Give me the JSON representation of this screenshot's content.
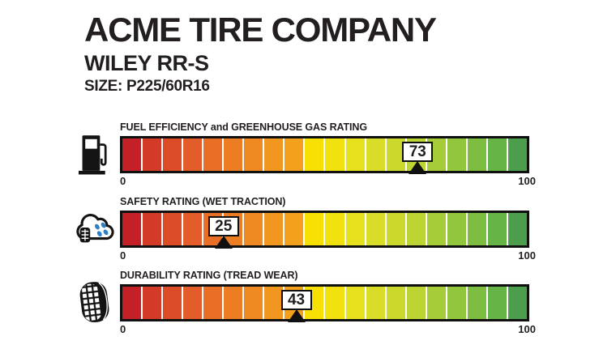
{
  "page": {
    "background": "#ffffff",
    "text_color": "#231f20",
    "bar_border_color": "#101010"
  },
  "header": {
    "company": "ACME TIRE COMPANY",
    "model": "WILEY RR-S",
    "size": "SIZE: P225/60R16"
  },
  "scale": {
    "min": 0,
    "max": 100,
    "min_label": "0",
    "max_label": "100",
    "segments": 20
  },
  "palette": [
    "#c32127",
    "#d43a28",
    "#dc4c27",
    "#e25d2a",
    "#e96f26",
    "#ec7d23",
    "#ee8a21",
    "#f1961f",
    "#f3a11c",
    "#f8e004",
    "#f1e20f",
    "#e6e01d",
    "#d9dd27",
    "#cbd92d",
    "#bcd532",
    "#a6cd38",
    "#92c63c",
    "#7dbe41",
    "#66b446",
    "#4c9e4c"
  ],
  "marker_style": {
    "box_bg": "#ffffff",
    "border": "#101010"
  },
  "icon_colors": {
    "black": "#141414",
    "raindrop_blue": "#2e7fc4"
  },
  "ratings": [
    {
      "label": "FUEL EFFICIENCY and GREENHOUSE GAS RATING",
      "icon": "fuel-pump-icon",
      "value": 73
    },
    {
      "label": "SAFETY RATING (WET TRACTION)",
      "icon": "rain-cloud-icon",
      "value": 25
    },
    {
      "label": "DURABILITY RATING (TREAD WEAR)",
      "icon": "tire-icon",
      "value": 43
    }
  ],
  "chart_data": {
    "type": "bar",
    "orientation": "horizontal_gauge",
    "title": "ACME TIRE COMPANY — WILEY RR-S — SIZE: P225/60R16",
    "categories": [
      "FUEL EFFICIENCY and GREENHOUSE GAS RATING",
      "SAFETY RATING (WET TRACTION)",
      "DURABILITY RATING (TREAD WEAR)"
    ],
    "values": [
      73,
      25,
      43
    ],
    "xlim": [
      0,
      100
    ],
    "tick_labels": [
      "0",
      "100"
    ],
    "segments_per_bar": 20,
    "color_scale": "red_to_green",
    "legend": "none",
    "grid": false
  }
}
